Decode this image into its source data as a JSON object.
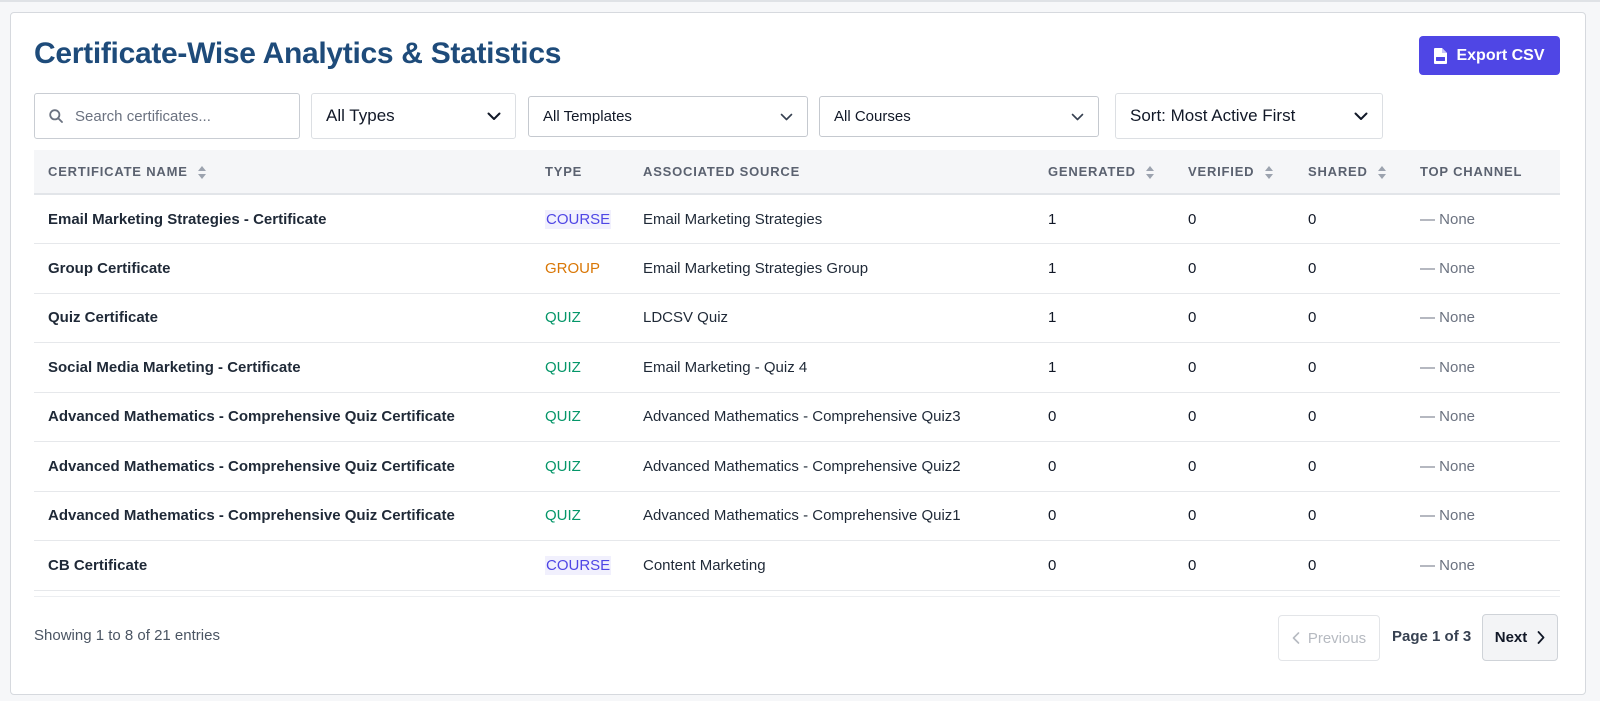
{
  "header": {
    "title": "Certificate-Wise Analytics & Statistics",
    "export_label": "Export CSV"
  },
  "filters": {
    "search_placeholder": "Search certificates...",
    "type_select": "All Types",
    "template_select": "All Templates",
    "course_select": "All Courses",
    "sort_select": "Sort: Most Active First"
  },
  "table": {
    "columns": [
      "Certificate Name",
      "Type",
      "Associated Source",
      "Generated",
      "Verified",
      "Shared",
      "Top Channel"
    ],
    "rows": [
      {
        "name": "Email Marketing Strategies - Certificate",
        "type": "COURSE",
        "source": "Email Marketing Strategies",
        "generated": "1",
        "verified": "0",
        "shared": "0",
        "channel": "— None"
      },
      {
        "name": "Group Certificate",
        "type": "GROUP",
        "source": "Email Marketing Strategies Group",
        "generated": "1",
        "verified": "0",
        "shared": "0",
        "channel": "— None"
      },
      {
        "name": "Quiz Certificate",
        "type": "QUIZ",
        "source": "LDCSV Quiz",
        "generated": "1",
        "verified": "0",
        "shared": "0",
        "channel": "— None"
      },
      {
        "name": "Social Media Marketing - Certificate",
        "type": "QUIZ",
        "source": "Email Marketing - Quiz 4",
        "generated": "1",
        "verified": "0",
        "shared": "0",
        "channel": "— None"
      },
      {
        "name": "Advanced Mathematics - Comprehensive Quiz Certificate",
        "type": "QUIZ",
        "source": "Advanced Mathematics - Comprehensive Quiz3",
        "generated": "0",
        "verified": "0",
        "shared": "0",
        "channel": "— None"
      },
      {
        "name": "Advanced Mathematics - Comprehensive Quiz Certificate",
        "type": "QUIZ",
        "source": "Advanced Mathematics - Comprehensive Quiz2",
        "generated": "0",
        "verified": "0",
        "shared": "0",
        "channel": "— None"
      },
      {
        "name": "Advanced Mathematics - Comprehensive Quiz Certificate",
        "type": "QUIZ",
        "source": "Advanced Mathematics - Comprehensive Quiz1",
        "generated": "0",
        "verified": "0",
        "shared": "0",
        "channel": "— None"
      },
      {
        "name": "CB Certificate",
        "type": "COURSE",
        "source": "Content Marketing",
        "generated": "0",
        "verified": "0",
        "shared": "0",
        "channel": "— None"
      }
    ]
  },
  "footer": {
    "showing": "Showing 1 to 8 of 21 entries",
    "prev_label": "Previous",
    "page_info": "Page 1 of 3",
    "next_label": "Next"
  },
  "colors": {
    "title": "#1e4b7a",
    "accent": "#4f46e5",
    "course": "#4f46e5",
    "group": "#d97706",
    "quiz": "#059669"
  },
  "icons": {
    "export": "csv-file-icon",
    "search": "search-icon",
    "select": "chevron-down-icon",
    "sort": "sort-icon",
    "prev": "chevron-left-icon",
    "next": "chevron-right-icon"
  }
}
